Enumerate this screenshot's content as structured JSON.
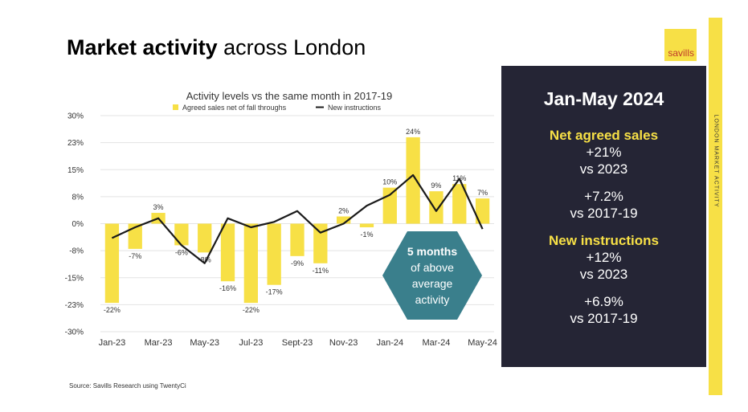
{
  "page": {
    "title_bold": "Market activity",
    "title_rest": "across London",
    "source": "Source: Savills Research using TwentyCi",
    "side_text": "LONDON MARKET ACTIVITY",
    "logo": "savills"
  },
  "panel": {
    "period": "Jan-May 2024",
    "lines": [
      {
        "text": "Net agreed sales",
        "head": true
      },
      {
        "text": "+21%",
        "head": false
      },
      {
        "text": "vs 2023",
        "head": false
      },
      {
        "text": "+7.2%",
        "head": false
      },
      {
        "text": "vs 2017-19",
        "head": false
      },
      {
        "text": "New instructions",
        "head": true
      },
      {
        "text": "+12%",
        "head": false
      },
      {
        "text": "vs 2023",
        "head": false
      },
      {
        "text": "+6.9%",
        "head": false
      },
      {
        "text": "vs 2017-19",
        "head": false
      }
    ]
  },
  "colors": {
    "bar": "#f7e046",
    "line": "#1a1a1a",
    "panel_bg": "#252535",
    "panel_accent": "#f7e046",
    "callout": "#3a7f8c"
  },
  "chart_data": {
    "type": "bar",
    "title": "Activity levels vs the same month in 2017-19",
    "legend": [
      "Agreed sales net of fall throughs",
      "New instructions"
    ],
    "legend_position": "top",
    "categories": [
      "Jan-23",
      "Feb-23",
      "Mar-23",
      "Apr-23",
      "May-23",
      "Jun-23",
      "Jul-23",
      "Aug-23",
      "Sept-23",
      "Oct-23",
      "Nov-23",
      "Dec-23",
      "Jan-24",
      "Feb-24",
      "Mar-24",
      "Apr-24",
      "May-24"
    ],
    "x_tick_labels": [
      "Jan-23",
      "Mar-23",
      "May-23",
      "Jul-23",
      "Sept-23",
      "Nov-23",
      "Jan-24",
      "Mar-24",
      "May-24"
    ],
    "y_tick_labels": [
      "30%",
      "23%",
      "15%",
      "8%",
      "0%",
      "-8%",
      "-15%",
      "-23%",
      "-30%"
    ],
    "ylim": [
      -30,
      30
    ],
    "series": [
      {
        "name": "Agreed sales net of fall throughs",
        "kind": "bar",
        "values": [
          -22,
          -7,
          3,
          -6,
          -8,
          -16,
          -22,
          -17,
          -9,
          -11,
          2,
          -1,
          10,
          24,
          9,
          11,
          7
        ],
        "labels": [
          "-22%",
          "-7%",
          "3%",
          "-6%",
          "-8%",
          "-16%",
          "-22%",
          "-17%",
          "-9%",
          "-11%",
          "2%",
          "-1%",
          "10%",
          "24%",
          "9%",
          "11%",
          "7%"
        ]
      },
      {
        "name": "New instructions",
        "kind": "line",
        "values": [
          -4,
          -1,
          1.5,
          -6,
          -11,
          1.5,
          -1,
          0.5,
          3.5,
          -2.5,
          0,
          5,
          8,
          13.5,
          3.5,
          12.5,
          -1.5
        ]
      }
    ],
    "annotation": "5 months of above average activity"
  }
}
